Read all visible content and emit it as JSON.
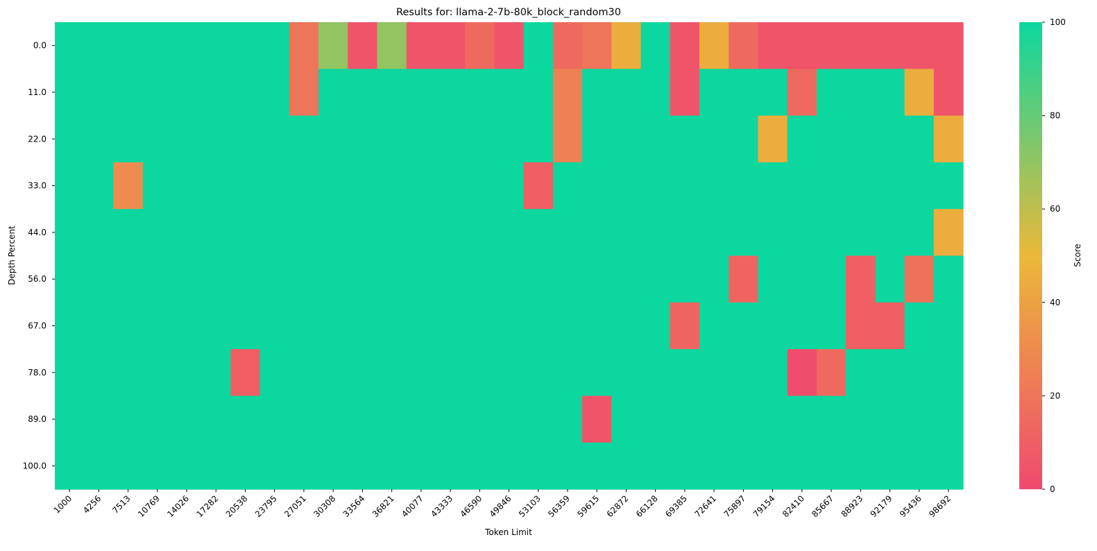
{
  "chart_data": {
    "type": "heatmap",
    "title": "Results for: llama-2-7b-80k_block_random30",
    "xlabel": "Token Limit",
    "ylabel": "Depth Percent",
    "x_categories": [
      "1000",
      "4256",
      "7513",
      "10769",
      "14026",
      "17282",
      "20538",
      "23795",
      "27051",
      "30308",
      "33564",
      "36821",
      "40077",
      "43333",
      "46590",
      "49846",
      "53103",
      "56359",
      "59615",
      "62872",
      "66128",
      "69385",
      "72641",
      "75897",
      "79154",
      "82410",
      "85667",
      "88923",
      "92179",
      "95436",
      "98692"
    ],
    "y_categories": [
      "0.0",
      "11.0",
      "22.0",
      "33.0",
      "44.0",
      "56.0",
      "67.0",
      "78.0",
      "89.0",
      "100.0"
    ],
    "values": [
      [
        100,
        100,
        100,
        100,
        100,
        100,
        100,
        100,
        20,
        70,
        5,
        70,
        5,
        5,
        15,
        5,
        100,
        15,
        20,
        45,
        100,
        5,
        45,
        15,
        5,
        5,
        5,
        5,
        5,
        5,
        5
      ],
      [
        100,
        100,
        100,
        100,
        100,
        100,
        100,
        100,
        20,
        100,
        100,
        100,
        100,
        100,
        100,
        100,
        100,
        25,
        100,
        100,
        100,
        5,
        100,
        100,
        100,
        15,
        100,
        100,
        100,
        45,
        5
      ],
      [
        100,
        100,
        100,
        100,
        100,
        100,
        100,
        100,
        100,
        100,
        100,
        100,
        100,
        100,
        100,
        100,
        100,
        25,
        100,
        100,
        100,
        100,
        100,
        100,
        45,
        100,
        100,
        100,
        100,
        100,
        45
      ],
      [
        100,
        100,
        30,
        100,
        100,
        100,
        100,
        100,
        100,
        100,
        100,
        100,
        100,
        100,
        100,
        100,
        10,
        100,
        100,
        100,
        100,
        100,
        100,
        100,
        100,
        100,
        100,
        100,
        100,
        100,
        100
      ],
      [
        100,
        100,
        100,
        100,
        100,
        100,
        100,
        100,
        100,
        100,
        100,
        100,
        100,
        100,
        100,
        100,
        100,
        100,
        100,
        100,
        100,
        100,
        100,
        100,
        100,
        100,
        100,
        100,
        100,
        100,
        45
      ],
      [
        100,
        100,
        100,
        100,
        100,
        100,
        100,
        100,
        100,
        100,
        100,
        100,
        100,
        100,
        100,
        100,
        100,
        100,
        100,
        100,
        100,
        100,
        100,
        12,
        100,
        100,
        100,
        10,
        100,
        18,
        100
      ],
      [
        100,
        100,
        100,
        100,
        100,
        100,
        100,
        100,
        100,
        100,
        100,
        100,
        100,
        100,
        100,
        100,
        100,
        100,
        100,
        100,
        100,
        12,
        100,
        100,
        100,
        100,
        100,
        10,
        10,
        100,
        100
      ],
      [
        100,
        100,
        100,
        100,
        100,
        100,
        10,
        100,
        100,
        100,
        100,
        100,
        100,
        100,
        100,
        100,
        100,
        100,
        100,
        100,
        100,
        100,
        100,
        100,
        100,
        2,
        15,
        100,
        100,
        100,
        100
      ],
      [
        100,
        100,
        100,
        100,
        100,
        100,
        100,
        100,
        100,
        100,
        100,
        100,
        100,
        100,
        100,
        100,
        100,
        100,
        5,
        100,
        100,
        100,
        100,
        100,
        100,
        100,
        100,
        100,
        100,
        100,
        100
      ],
      [
        100,
        100,
        100,
        100,
        100,
        100,
        100,
        100,
        100,
        100,
        100,
        100,
        100,
        100,
        100,
        100,
        100,
        100,
        100,
        100,
        100,
        100,
        100,
        100,
        100,
        100,
        100,
        100,
        100,
        100,
        100
      ]
    ],
    "colorbar": {
      "label": "Score",
      "range": [
        0,
        100
      ],
      "ticks": [
        "0",
        "20",
        "40",
        "60",
        "80",
        "100"
      ],
      "colors": [
        "#F0496E",
        "#EBB839",
        "#0CD79F"
      ]
    },
    "grid": false,
    "legend": "colorbar-right"
  }
}
